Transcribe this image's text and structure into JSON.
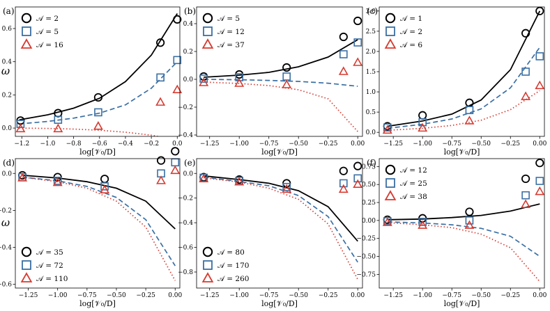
{
  "figure": {
    "y_axis_label": "ω",
    "x_axis_label": "log[𝒱₀/D]"
  },
  "colors": {
    "black": "#000000",
    "blue": "#3a6fa3",
    "red": "#d63b31"
  },
  "chart_data": [
    {
      "panel": "(a)",
      "type": "scatter",
      "xlabel": "log[𝒱₀/D]",
      "ylabel": "ω",
      "xlim": [
        -1.25,
        0.02
      ],
      "ylim": [
        -0.05,
        0.73
      ],
      "xticks": [
        -1.2,
        -1.0,
        -0.8,
        -0.6,
        -0.4,
        -0.2,
        0.0
      ],
      "xtick_labels": [
        "−1.2",
        "−1.0",
        "−0.8",
        "−0.6",
        "−0.4",
        "−0.2",
        "0.0"
      ],
      "yticks": [
        0.0,
        0.2,
        0.4,
        0.6
      ],
      "ytick_labels": [
        "0.0",
        "0.2",
        "0.4",
        "0.6"
      ],
      "legend_position": "top-left",
      "series": [
        {
          "name": "𝒜 = 2",
          "marker": "circle",
          "color": "black",
          "x": [
            -1.21,
            -0.92,
            -0.61,
            -0.13,
            0.0
          ],
          "y": [
            0.045,
            0.09,
            0.185,
            0.515,
            0.655
          ]
        },
        {
          "name": "𝒜 = 5",
          "marker": "square",
          "color": "blue",
          "x": [
            -1.21,
            -0.92,
            -0.61,
            -0.13,
            0.0
          ],
          "y": [
            0.025,
            0.05,
            0.095,
            0.305,
            0.41
          ]
        },
        {
          "name": "𝒜 = 16",
          "marker": "triangle",
          "color": "red",
          "x": [
            -1.21,
            -0.92,
            -0.61,
            -0.13,
            0.0
          ],
          "y": [
            -0.005,
            -0.005,
            0.01,
            0.155,
            0.23
          ]
        }
      ],
      "curves": [
        {
          "style": "solid",
          "color": "black",
          "x": [
            -1.22,
            -1.0,
            -0.8,
            -0.6,
            -0.4,
            -0.2,
            0.0
          ],
          "y": [
            0.05,
            0.08,
            0.12,
            0.18,
            0.28,
            0.44,
            0.69
          ]
        },
        {
          "style": "dashed",
          "color": "blue",
          "x": [
            -1.22,
            -1.0,
            -0.8,
            -0.6,
            -0.4,
            -0.2,
            0.0
          ],
          "y": [
            0.025,
            0.04,
            0.06,
            0.09,
            0.14,
            0.24,
            0.4
          ]
        },
        {
          "style": "dotted",
          "color": "red",
          "x": [
            -1.22,
            -1.0,
            -0.8,
            -0.6,
            -0.4,
            -0.2,
            0.0
          ],
          "y": [
            0.0,
            -0.002,
            -0.006,
            -0.013,
            -0.025,
            -0.043,
            -0.072
          ]
        }
      ]
    },
    {
      "panel": "(b)",
      "type": "scatter",
      "xlabel": "log[𝒱₀/D]",
      "ylabel": "",
      "xlim": [
        -1.36,
        0.04
      ],
      "ylim": [
        -0.41,
        0.52
      ],
      "xticks": [
        -1.25,
        -1.0,
        -0.75,
        -0.5,
        -0.25,
        0.0
      ],
      "xtick_labels": [
        "−1.25",
        "−1.00",
        "−0.75",
        "−0.50",
        "−0.25",
        "0.00"
      ],
      "yticks": [
        -0.4,
        -0.2,
        0.0,
        0.2,
        0.4
      ],
      "ytick_labels": [
        "−0.4",
        "−0.2",
        "0.0",
        "0.2",
        "0.4"
      ],
      "legend_position": "top-left",
      "series": [
        {
          "name": "𝒜 = 5",
          "marker": "circle",
          "color": "black",
          "x": [
            -1.3,
            -1.0,
            -0.6,
            -0.12,
            0.0
          ],
          "y": [
            0.02,
            0.035,
            0.085,
            0.305,
            0.42
          ]
        },
        {
          "name": "𝒜 = 12",
          "marker": "square",
          "color": "blue",
          "x": [
            -1.3,
            -1.0,
            -0.6,
            -0.12,
            0.0
          ],
          "y": [
            0.005,
            0.015,
            0.02,
            0.18,
            0.265
          ]
        },
        {
          "name": "𝒜 = 37",
          "marker": "triangle",
          "color": "red",
          "x": [
            -1.3,
            -1.0,
            -0.6,
            -0.12,
            0.0
          ],
          "y": [
            -0.025,
            -0.03,
            -0.04,
            0.055,
            0.12
          ]
        }
      ],
      "curves": [
        {
          "style": "solid",
          "color": "black",
          "x": [
            -1.3,
            -1.0,
            -0.75,
            -0.5,
            -0.25,
            0.0
          ],
          "y": [
            0.015,
            0.03,
            0.05,
            0.09,
            0.16,
            0.285
          ]
        },
        {
          "style": "dashed",
          "color": "blue",
          "x": [
            -1.3,
            -1.0,
            -0.75,
            -0.5,
            -0.25,
            0.0
          ],
          "y": [
            0.0,
            -0.003,
            -0.008,
            -0.015,
            -0.028,
            -0.05
          ]
        },
        {
          "style": "dotted",
          "color": "red",
          "x": [
            -1.3,
            -1.0,
            -0.75,
            -0.5,
            -0.25,
            0.0
          ],
          "y": [
            -0.02,
            -0.03,
            -0.045,
            -0.075,
            -0.14,
            -0.375
          ]
        }
      ]
    },
    {
      "panel": "(c)",
      "type": "scatter",
      "xlabel": "log[𝒱₀/D]",
      "ylabel": "",
      "xlim": [
        -1.37,
        0.04
      ],
      "ylim": [
        -0.1,
        3.1
      ],
      "xticks": [
        -1.25,
        -1.0,
        -0.75,
        -0.5,
        -0.25,
        0.0
      ],
      "xtick_labels": [
        "−1.25",
        "−1.00",
        "−0.75",
        "−0.50",
        "−0.25",
        "0.00"
      ],
      "yticks": [
        0.0,
        0.5,
        1.0,
        1.5,
        2.0,
        2.5,
        3.0
      ],
      "ytick_labels": [
        "0.0",
        "0.5",
        "1.0",
        "1.5",
        "2.0",
        "2.5",
        "3.0"
      ],
      "legend_position": "top-left",
      "series": [
        {
          "name": "𝒜 = 1",
          "marker": "circle",
          "color": "black",
          "x": [
            -1.3,
            -1.0,
            -0.6,
            -0.12,
            0.0
          ],
          "y": [
            0.15,
            0.42,
            0.73,
            2.45,
            3.0
          ]
        },
        {
          "name": "𝒜 = 2",
          "marker": "square",
          "color": "blue",
          "x": [
            -1.3,
            -1.0,
            -0.6,
            -0.12,
            0.0
          ],
          "y": [
            0.12,
            0.25,
            0.55,
            1.5,
            1.88
          ]
        },
        {
          "name": "𝒜 = 6",
          "marker": "triangle",
          "color": "red",
          "x": [
            -1.3,
            -1.0,
            -0.6,
            -0.12,
            0.0
          ],
          "y": [
            0.05,
            0.1,
            0.28,
            0.88,
            1.15
          ]
        }
      ],
      "curves": [
        {
          "style": "solid",
          "color": "black",
          "x": [
            -1.3,
            -1.0,
            -0.75,
            -0.5,
            -0.25,
            0.0
          ],
          "y": [
            0.15,
            0.28,
            0.45,
            0.8,
            1.55,
            3.0
          ]
        },
        {
          "style": "dashed",
          "color": "blue",
          "x": [
            -1.3,
            -1.0,
            -0.75,
            -0.5,
            -0.25,
            0.0
          ],
          "y": [
            0.1,
            0.2,
            0.33,
            0.58,
            1.1,
            2.1
          ]
        },
        {
          "style": "dotted",
          "color": "red",
          "x": [
            -1.3,
            -1.0,
            -0.75,
            -0.5,
            -0.25,
            0.0
          ],
          "y": [
            0.05,
            0.1,
            0.17,
            0.3,
            0.56,
            1.03
          ]
        }
      ]
    },
    {
      "panel": "(d)",
      "type": "scatter",
      "xlabel": "log[𝒱₀/D]",
      "ylabel": "ω",
      "xlim": [
        -1.36,
        0.04
      ],
      "ylim": [
        -0.62,
        0.08
      ],
      "xticks": [
        -1.25,
        -1.0,
        -0.75,
        -0.5,
        -0.25,
        0.0
      ],
      "xtick_labels": [
        "−1.25",
        "−1.00",
        "−0.75",
        "−0.50",
        "−0.25",
        "0.00"
      ],
      "yticks": [
        -0.6,
        -0.4,
        -0.2,
        0.0
      ],
      "ytick_labels": [
        "−0.6",
        "−0.4",
        "−0.2",
        "0.0"
      ],
      "legend_position": "bottom-left",
      "series": [
        {
          "name": "𝒜 = 35",
          "marker": "circle",
          "color": "black",
          "x": [
            -1.3,
            -1.0,
            -0.6,
            -0.12,
            0.0
          ],
          "y": [
            -0.01,
            -0.02,
            -0.03,
            0.07,
            0.12
          ]
        },
        {
          "name": "𝒜 = 72",
          "marker": "square",
          "color": "blue",
          "x": [
            -1.3,
            -1.0,
            -0.6,
            -0.12,
            0.0
          ],
          "y": [
            -0.02,
            -0.04,
            -0.07,
            0.0,
            0.06
          ]
        },
        {
          "name": "𝒜 = 110",
          "marker": "triangle",
          "color": "red",
          "x": [
            -1.3,
            -1.0,
            -0.6,
            -0.12,
            0.0
          ],
          "y": [
            -0.025,
            -0.05,
            -0.09,
            -0.04,
            0.015
          ]
        }
      ],
      "curves": [
        {
          "style": "solid",
          "color": "black",
          "x": [
            -1.3,
            -1.0,
            -0.75,
            -0.5,
            -0.25,
            0.0
          ],
          "y": [
            -0.01,
            -0.025,
            -0.045,
            -0.08,
            -0.15,
            -0.3
          ]
        },
        {
          "style": "dashed",
          "color": "blue",
          "x": [
            -1.3,
            -1.0,
            -0.75,
            -0.5,
            -0.25,
            0.0
          ],
          "y": [
            -0.02,
            -0.04,
            -0.07,
            -0.13,
            -0.25,
            -0.5
          ]
        },
        {
          "style": "dotted",
          "color": "red",
          "x": [
            -1.3,
            -1.0,
            -0.75,
            -0.5,
            -0.25,
            0.0
          ],
          "y": [
            -0.02,
            -0.045,
            -0.08,
            -0.15,
            -0.29,
            -0.58
          ]
        }
      ]
    },
    {
      "panel": "(e)",
      "type": "scatter",
      "xlabel": "log[𝒱₀/D]",
      "ylabel": "",
      "xlim": [
        -1.36,
        0.04
      ],
      "ylim": [
        -0.93,
        0.12
      ],
      "xticks": [
        -1.25,
        -1.0,
        -0.75,
        -0.5,
        -0.25,
        0.0
      ],
      "xtick_labels": [
        "−1.25",
        "−1.00",
        "−0.75",
        "−0.50",
        "−0.25",
        "0.00"
      ],
      "yticks": [
        -0.8,
        -0.6,
        -0.4,
        -0.2,
        0.0
      ],
      "ytick_labels": [
        "−0.8",
        "−0.6",
        "−0.4",
        "−0.2",
        "0.0"
      ],
      "legend_position": "bottom-left",
      "series": [
        {
          "name": "𝒜 = 80",
          "marker": "circle",
          "color": "black",
          "x": [
            -1.3,
            -1.0,
            -0.6,
            -0.12,
            0.0
          ],
          "y": [
            -0.03,
            -0.05,
            -0.08,
            0.02,
            0.06
          ]
        },
        {
          "name": "𝒜 = 170",
          "marker": "square",
          "color": "blue",
          "x": [
            -1.3,
            -1.0,
            -0.6,
            -0.12,
            0.0
          ],
          "y": [
            -0.035,
            -0.06,
            -0.11,
            -0.08,
            -0.04
          ]
        },
        {
          "name": "𝒜 = 260",
          "marker": "triangle",
          "color": "red",
          "x": [
            -1.3,
            -1.0,
            -0.6,
            -0.12,
            0.0
          ],
          "y": [
            -0.045,
            -0.07,
            -0.13,
            -0.13,
            -0.09
          ]
        }
      ],
      "curves": [
        {
          "style": "solid",
          "color": "black",
          "x": [
            -1.3,
            -1.0,
            -0.75,
            -0.5,
            -0.25,
            0.0
          ],
          "y": [
            -0.02,
            -0.05,
            -0.08,
            -0.14,
            -0.27,
            -0.55
          ]
        },
        {
          "style": "dashed",
          "color": "blue",
          "x": [
            -1.3,
            -1.0,
            -0.75,
            -0.5,
            -0.25,
            0.0
          ],
          "y": [
            -0.03,
            -0.065,
            -0.1,
            -0.18,
            -0.35,
            -0.72
          ]
        },
        {
          "style": "dotted",
          "color": "red",
          "x": [
            -1.3,
            -1.0,
            -0.75,
            -0.5,
            -0.25,
            0.0
          ],
          "y": [
            -0.035,
            -0.07,
            -0.12,
            -0.21,
            -0.41,
            -0.86
          ]
        }
      ]
    },
    {
      "panel": "(f)",
      "type": "scatter",
      "xlabel": "log[𝒱₀/D]",
      "ylabel": "",
      "xlim": [
        -1.37,
        0.04
      ],
      "ylim": [
        -0.94,
        0.86
      ],
      "xticks": [
        -1.25,
        -1.0,
        -0.75,
        -0.5,
        -0.25,
        0.0
      ],
      "xtick_labels": [
        "−1.25",
        "−1.00",
        "−0.75",
        "−0.50",
        "−0.25",
        "0.00"
      ],
      "yticks": [
        -0.75,
        -0.5,
        -0.25,
        0.0,
        0.25,
        0.5,
        0.75
      ],
      "ytick_labels": [
        "−0.75",
        "−0.50",
        "−0.25",
        "0.00",
        "0.25",
        "0.50",
        "0.75"
      ],
      "legend_position": "top-left",
      "series": [
        {
          "name": "𝒜 = 12",
          "marker": "circle",
          "color": "black",
          "x": [
            -1.3,
            -1.0,
            -0.6,
            -0.12,
            0.0
          ],
          "y": [
            0.01,
            0.03,
            0.12,
            0.58,
            0.8
          ]
        },
        {
          "name": "𝒜 = 25",
          "marker": "square",
          "color": "blue",
          "x": [
            -1.3,
            -1.0,
            -0.6,
            -0.12,
            0.0
          ],
          "y": [
            -0.01,
            -0.02,
            0.0,
            0.35,
            0.55
          ]
        },
        {
          "name": "𝒜 = 38",
          "marker": "triangle",
          "color": "red",
          "x": [
            -1.3,
            -1.0,
            -0.6,
            -0.12,
            0.0
          ],
          "y": [
            -0.03,
            -0.07,
            -0.07,
            0.22,
            0.4
          ]
        }
      ],
      "curves": [
        {
          "style": "solid",
          "color": "black",
          "x": [
            -1.3,
            -1.0,
            -0.75,
            -0.5,
            -0.25,
            0.0
          ],
          "y": [
            0.01,
            0.02,
            0.04,
            0.07,
            0.13,
            0.23
          ]
        },
        {
          "style": "dashed",
          "color": "blue",
          "x": [
            -1.3,
            -1.0,
            -0.75,
            -0.5,
            -0.25,
            0.0
          ],
          "y": [
            -0.02,
            -0.035,
            -0.06,
            -0.11,
            -0.22,
            -0.5
          ]
        },
        {
          "style": "dotted",
          "color": "red",
          "x": [
            -1.3,
            -1.0,
            -0.75,
            -0.5,
            -0.25,
            0.0
          ],
          "y": [
            -0.03,
            -0.06,
            -0.1,
            -0.19,
            -0.38,
            -0.85
          ]
        }
      ]
    }
  ]
}
